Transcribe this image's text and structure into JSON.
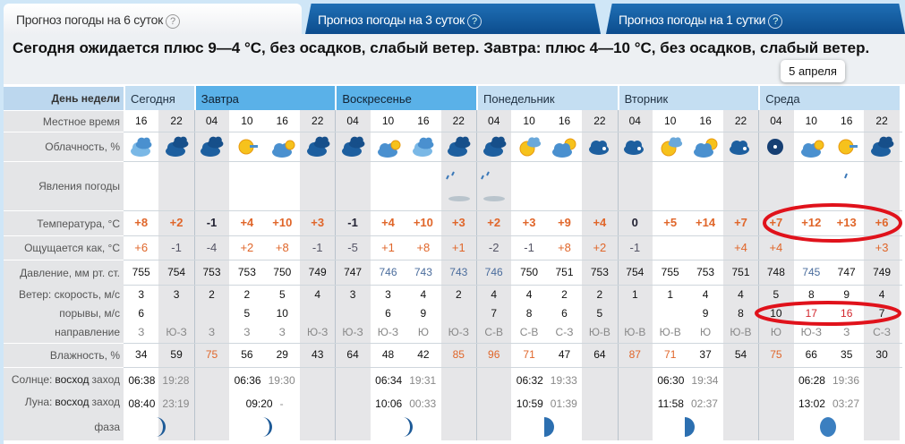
{
  "tabs": [
    {
      "label": "Прогноз погоды на 6 суток",
      "help": "?",
      "active": true
    },
    {
      "label": "Прогноз погоды на 3 суток",
      "help": "?",
      "active": false
    },
    {
      "label": "Прогноз погоды на 1 сутки",
      "help": "?",
      "active": false
    }
  ],
  "summary": "Сегодня ожидается плюс 9—4 °C, без осадков, слабый ветер. Завтра: плюс 4—10 °C, без осадков, слабый ветер.",
  "row_labels": {
    "day": "День недели",
    "time": "Местное время",
    "cloud": "Облачность, %",
    "phenomena": "Явления погоды",
    "temp": "Температура, °C",
    "feels": "Ощущается как, °C",
    "pressure": "Давление, мм рт. ст.",
    "wind": "Ветер: скорость, м/с",
    "gust": "порывы, м/с",
    "dir": "направление",
    "humidity": "Влажность, %",
    "sun_prefix": "Солнце:",
    "rise": "восход",
    "set": "заход",
    "moon_prefix": "Луна:",
    "phase": "фаза"
  },
  "days": [
    {
      "label": "Сегодня",
      "weekend": false,
      "cols": 2,
      "sun": [
        "06:38",
        "19:28"
      ],
      "moon": [
        "08:40",
        "23:19"
      ],
      "phase": "waxing-crescent"
    },
    {
      "label": "Завтра",
      "weekend": true,
      "cols": 4,
      "sun": [
        "06:36",
        "19:30"
      ],
      "moon": [
        "09:20",
        "-"
      ],
      "phase": "waxing-crescent"
    },
    {
      "label": "Воскресенье",
      "weekend": true,
      "cols": 4,
      "sun": [
        "06:34",
        "19:31"
      ],
      "moon": [
        "10:06",
        "00:33"
      ],
      "phase": "waxing-crescent"
    },
    {
      "label": "Понедельник",
      "weekend": false,
      "cols": 4,
      "sun": [
        "06:32",
        "19:33"
      ],
      "moon": [
        "10:59",
        "01:39"
      ],
      "phase": "first-quarter"
    },
    {
      "label": "Вторник",
      "weekend": false,
      "cols": 4,
      "sun": [
        "06:30",
        "19:34"
      ],
      "moon": [
        "11:58",
        "02:37"
      ],
      "phase": "first-quarter"
    },
    {
      "label": "Среда",
      "weekend": false,
      "cols": 4,
      "sun": [
        "06:28",
        "19:36"
      ],
      "moon": [
        "13:02",
        "03:27"
      ],
      "phase": "waxing-gibbous"
    }
  ],
  "columns": [
    {
      "time": "16",
      "cloud": "overcast",
      "ph": "",
      "temp": "+8",
      "feels": "+6",
      "pressure": "755",
      "wind": "3",
      "gust": "6",
      "dir": "З",
      "humidity": "34"
    },
    {
      "time": "22",
      "cloud": "overcast-dark",
      "ph": "",
      "temp": "+2",
      "feels": "-1",
      "pressure": "754",
      "wind": "3",
      "gust": "",
      "dir": "Ю-З",
      "humidity": "59"
    },
    {
      "time": "04",
      "cloud": "overcast-dark",
      "ph": "",
      "temp": "-1",
      "feels": "-4",
      "pressure": "753",
      "wind": "2",
      "gust": "",
      "dir": "З",
      "humidity": "75"
    },
    {
      "time": "10",
      "cloud": "sunny",
      "ph": "",
      "temp": "+4",
      "feels": "+2",
      "pressure": "753",
      "wind": "2",
      "gust": "5",
      "dir": "З",
      "humidity": "56"
    },
    {
      "time": "16",
      "cloud": "partly-cloudy",
      "ph": "",
      "temp": "+10",
      "feels": "+8",
      "pressure": "750",
      "wind": "5",
      "gust": "10",
      "dir": "З",
      "humidity": "29"
    },
    {
      "time": "22",
      "cloud": "overcast-dark",
      "ph": "",
      "temp": "+3",
      "feels": "-1",
      "pressure": "749",
      "wind": "4",
      "gust": "",
      "dir": "Ю-З",
      "humidity": "43"
    },
    {
      "time": "04",
      "cloud": "overcast-dark",
      "ph": "",
      "temp": "-1",
      "feels": "-5",
      "pressure": "747",
      "wind": "3",
      "gust": "",
      "dir": "Ю-З",
      "humidity": "64"
    },
    {
      "time": "10",
      "cloud": "partly-cloudy",
      "ph": "",
      "temp": "+4",
      "feels": "+1",
      "pressure": "746",
      "wind": "3",
      "gust": "6",
      "dir": "Ю-З",
      "humidity": "48"
    },
    {
      "time": "16",
      "cloud": "overcast",
      "ph": "",
      "temp": "+10",
      "feels": "+8",
      "pressure": "743",
      "wind": "4",
      "gust": "9",
      "dir": "Ю",
      "humidity": "42"
    },
    {
      "time": "22",
      "cloud": "overcast-dark",
      "ph": "rain-fog",
      "temp": "+3",
      "feels": "+1",
      "pressure": "743",
      "wind": "2",
      "gust": "",
      "dir": "Ю-З",
      "humidity": "85"
    },
    {
      "time": "04",
      "cloud": "overcast-dark",
      "ph": "rain-fog",
      "temp": "+2",
      "feels": "-2",
      "pressure": "746",
      "wind": "4",
      "gust": "7",
      "dir": "С-В",
      "humidity": "96"
    },
    {
      "time": "10",
      "cloud": "sun-cloud",
      "ph": "",
      "temp": "+3",
      "feels": "-1",
      "pressure": "750",
      "wind": "4",
      "gust": "8",
      "dir": "С-В",
      "humidity": "71"
    },
    {
      "time": "16",
      "cloud": "cloud-sun",
      "ph": "",
      "temp": "+9",
      "feels": "+8",
      "pressure": "751",
      "wind": "2",
      "gust": "6",
      "dir": "С-З",
      "humidity": "47"
    },
    {
      "time": "22",
      "cloud": "night-cloudy",
      "ph": "",
      "temp": "+4",
      "feels": "+2",
      "pressure": "753",
      "wind": "2",
      "gust": "5",
      "dir": "Ю-В",
      "humidity": "64"
    },
    {
      "time": "04",
      "cloud": "night-cloudy",
      "ph": "",
      "temp": "0",
      "feels": "-1",
      "pressure": "754",
      "wind": "1",
      "gust": "",
      "dir": "Ю-В",
      "humidity": "87"
    },
    {
      "time": "10",
      "cloud": "sun-cloud",
      "ph": "",
      "temp": "+5",
      "feels": "",
      "pressure": "755",
      "wind": "1",
      "gust": "",
      "dir": "Ю-В",
      "humidity": "71"
    },
    {
      "time": "16",
      "cloud": "cloud-sun",
      "ph": "",
      "temp": "+14",
      "feels": "",
      "pressure": "753",
      "wind": "4",
      "gust": "9",
      "dir": "Ю",
      "humidity": "37"
    },
    {
      "time": "22",
      "cloud": "night-cloudy",
      "ph": "",
      "temp": "+7",
      "feels": "+4",
      "pressure": "751",
      "wind": "4",
      "gust": "8",
      "dir": "Ю-В",
      "humidity": "54"
    },
    {
      "time": "04",
      "cloud": "clear-night",
      "ph": "",
      "temp": "+7",
      "feels": "+4",
      "pressure": "748",
      "wind": "5",
      "gust": "10",
      "dir": "Ю",
      "humidity": "75"
    },
    {
      "time": "10",
      "cloud": "partly-cloudy",
      "ph": "",
      "temp": "+12",
      "feels": "",
      "pressure": "745",
      "wind": "8",
      "gust": "17",
      "dir": "Ю-З",
      "humidity": "66"
    },
    {
      "time": "16",
      "cloud": "sunny",
      "ph": "rain-light",
      "temp": "+13",
      "feels": "",
      "pressure": "747",
      "wind": "9",
      "gust": "16",
      "dir": "З",
      "humidity": "35"
    },
    {
      "time": "22",
      "cloud": "overcast-dark",
      "ph": "",
      "temp": "+6",
      "feels": "+3",
      "pressure": "749",
      "wind": "4",
      "gust": "7",
      "dir": "С-З",
      "humidity": "30"
    }
  ],
  "tooltip": "5 апреля",
  "colors": {
    "positive": "#e0662a",
    "negative": "#223344",
    "low_pressure": "#4a6c9c",
    "strong_gust": "#d2272e",
    "annotation": "#e0121b",
    "weekend_header": "#5ab1e8",
    "weekday_header": "#c4def2"
  }
}
